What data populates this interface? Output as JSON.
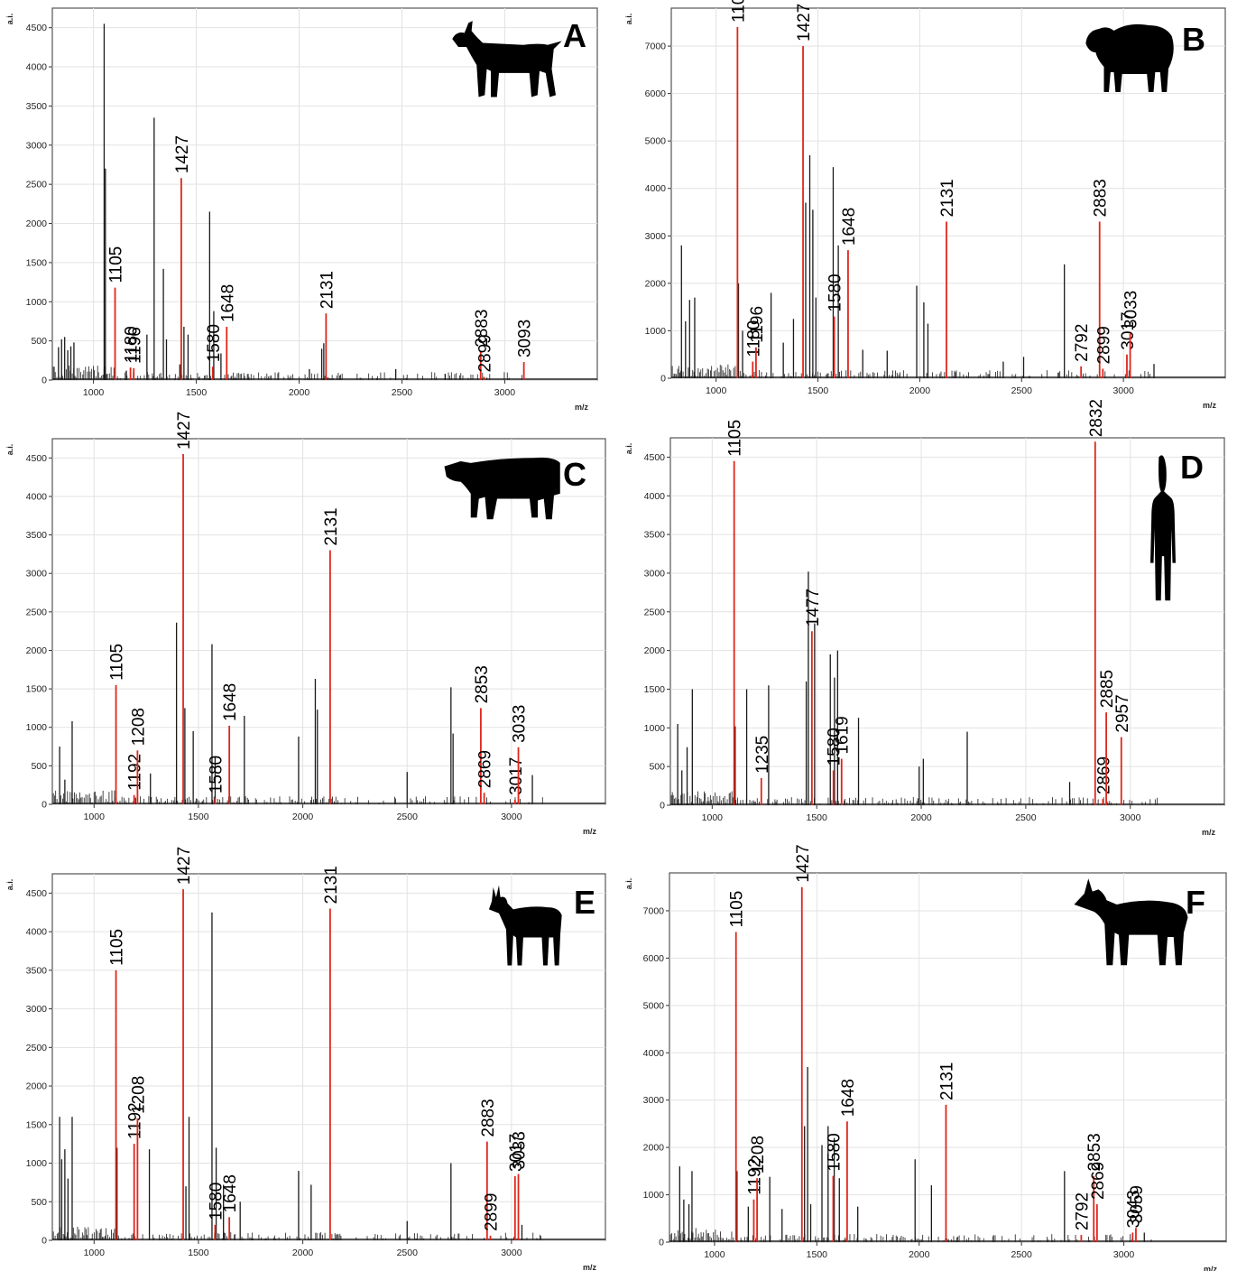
{
  "chart_data": [
    {
      "panel": "A",
      "type": "bar",
      "animal_icon": "goat-silhouette-icon",
      "xlabel": "m/z",
      "ylabel": "a.i.",
      "xlim": [
        800,
        3450
      ],
      "ylim": [
        0,
        4750
      ],
      "xticks": [
        1000,
        1500,
        2000,
        2500,
        3000
      ],
      "yticks": [
        0,
        500,
        1000,
        1500,
        2000,
        2500,
        3000,
        3500,
        4000,
        4500
      ],
      "red_peaks": [
        {
          "mz": 1105,
          "value": 1180,
          "label": "1105"
        },
        {
          "mz": 1180,
          "value": 160,
          "label": "1180"
        },
        {
          "mz": 1196,
          "value": 150,
          "label": "1196"
        },
        {
          "mz": 1427,
          "value": 2580,
          "label": "1427"
        },
        {
          "mz": 1580,
          "value": 170,
          "label": "1580"
        },
        {
          "mz": 1648,
          "value": 680,
          "label": "1648"
        },
        {
          "mz": 2131,
          "value": 850,
          "label": "2131"
        },
        {
          "mz": 2883,
          "value": 360,
          "label": "2883"
        },
        {
          "mz": 2899,
          "value": 40,
          "label": "2899"
        },
        {
          "mz": 3093,
          "value": 230,
          "label": "3093"
        }
      ],
      "black_peaks": [
        [
          830,
          420
        ],
        [
          845,
          520
        ],
        [
          860,
          550
        ],
        [
          875,
          380
        ],
        [
          890,
          430
        ],
        [
          905,
          480
        ],
        [
          1052,
          4550
        ],
        [
          1058,
          2700
        ],
        [
          1160,
          120
        ],
        [
          1260,
          580
        ],
        [
          1295,
          3350
        ],
        [
          1340,
          1420
        ],
        [
          1355,
          520
        ],
        [
          1420,
          200
        ],
        [
          1440,
          680
        ],
        [
          1460,
          580
        ],
        [
          1565,
          2150
        ],
        [
          1585,
          880
        ],
        [
          1620,
          340
        ],
        [
          2050,
          140
        ],
        [
          2110,
          400
        ],
        [
          2120,
          470
        ],
        [
          2470,
          140
        ],
        [
          2710,
          80
        ]
      ]
    },
    {
      "panel": "B",
      "type": "bar",
      "animal_icon": "sheep-silhouette-icon",
      "xlabel": "m/z",
      "ylabel": "a.i.",
      "xlim": [
        780,
        3500
      ],
      "ylim": [
        0,
        7800
      ],
      "xticks": [
        1000,
        1500,
        2000,
        2500,
        3000
      ],
      "yticks": [
        0,
        1000,
        2000,
        3000,
        4000,
        5000,
        6000,
        7000
      ],
      "red_peaks": [
        {
          "mz": 1105,
          "value": 7400,
          "label": "1105"
        },
        {
          "mz": 1180,
          "value": 350,
          "label": "1180"
        },
        {
          "mz": 1196,
          "value": 650,
          "label": "1196"
        },
        {
          "mz": 1427,
          "value": 7000,
          "label": "1427"
        },
        {
          "mz": 1580,
          "value": 1300,
          "label": "1580"
        },
        {
          "mz": 1648,
          "value": 2700,
          "label": "1648"
        },
        {
          "mz": 2131,
          "value": 3300,
          "label": "2131"
        },
        {
          "mz": 2792,
          "value": 250,
          "label": "2792"
        },
        {
          "mz": 2883,
          "value": 3300,
          "label": "2883"
        },
        {
          "mz": 2899,
          "value": 200,
          "label": "2899"
        },
        {
          "mz": 3017,
          "value": 500,
          "label": "3017"
        },
        {
          "mz": 3033,
          "value": 950,
          "label": "3033"
        }
      ],
      "black_peaks": [
        [
          830,
          2800
        ],
        [
          850,
          1200
        ],
        [
          870,
          1650
        ],
        [
          895,
          1700
        ],
        [
          1110,
          2000
        ],
        [
          1130,
          1000
        ],
        [
          1270,
          1800
        ],
        [
          1330,
          750
        ],
        [
          1380,
          1250
        ],
        [
          1440,
          3700
        ],
        [
          1460,
          4700
        ],
        [
          1475,
          3550
        ],
        [
          1490,
          1700
        ],
        [
          1575,
          4450
        ],
        [
          1600,
          2800
        ],
        [
          1720,
          600
        ],
        [
          1840,
          580
        ],
        [
          1985,
          1950
        ],
        [
          2020,
          1600
        ],
        [
          2040,
          1150
        ],
        [
          2410,
          350
        ],
        [
          2510,
          450
        ],
        [
          2710,
          2400
        ],
        [
          3150,
          300
        ]
      ]
    },
    {
      "panel": "C",
      "type": "bar",
      "animal_icon": "cow-silhouette-icon",
      "xlabel": "m/z",
      "ylabel": "a.i.",
      "xlim": [
        800,
        3450
      ],
      "ylim": [
        0,
        4750
      ],
      "xticks": [
        1000,
        1500,
        2000,
        2500,
        3000
      ],
      "yticks": [
        0,
        500,
        1000,
        1500,
        2000,
        2500,
        3000,
        3500,
        4000,
        4500
      ],
      "red_peaks": [
        {
          "mz": 1105,
          "value": 1550,
          "label": "1105"
        },
        {
          "mz": 1192,
          "value": 120,
          "label": "1192"
        },
        {
          "mz": 1208,
          "value": 700,
          "label": "1208"
        },
        {
          "mz": 1427,
          "value": 4550,
          "label": "1427"
        },
        {
          "mz": 1580,
          "value": 80,
          "label": "1580"
        },
        {
          "mz": 1648,
          "value": 1020,
          "label": "1648"
        },
        {
          "mz": 2131,
          "value": 3300,
          "label": "2131"
        },
        {
          "mz": 2853,
          "value": 1250,
          "label": "2853"
        },
        {
          "mz": 2869,
          "value": 150,
          "label": "2869"
        },
        {
          "mz": 3017,
          "value": 60,
          "label": "3017"
        },
        {
          "mz": 3033,
          "value": 740,
          "label": "3033"
        }
      ],
      "black_peaks": [
        [
          835,
          750
        ],
        [
          860,
          320
        ],
        [
          895,
          1080
        ],
        [
          1270,
          400
        ],
        [
          1395,
          2360
        ],
        [
          1435,
          1250
        ],
        [
          1475,
          950
        ],
        [
          1565,
          2080
        ],
        [
          1580,
          620
        ],
        [
          1720,
          1150
        ],
        [
          1980,
          880
        ],
        [
          2060,
          1630
        ],
        [
          2070,
          1230
        ],
        [
          2500,
          420
        ],
        [
          2710,
          1520
        ],
        [
          2720,
          920
        ],
        [
          3100,
          380
        ]
      ]
    },
    {
      "panel": "D",
      "type": "bar",
      "animal_icon": "human-silhouette-icon",
      "xlabel": "m/z",
      "ylabel": "a.i.",
      "xlim": [
        800,
        3450
      ],
      "ylim": [
        0,
        4750
      ],
      "xticks": [
        1000,
        1500,
        2000,
        2500,
        3000
      ],
      "yticks": [
        0,
        500,
        1000,
        1500,
        2000,
        2500,
        3000,
        3500,
        4000,
        4500
      ],
      "red_peaks": [
        {
          "mz": 1105,
          "value": 4450,
          "label": "1105"
        },
        {
          "mz": 1235,
          "value": 350,
          "label": "1235"
        },
        {
          "mz": 1477,
          "value": 2250,
          "label": "1477"
        },
        {
          "mz": 1580,
          "value": 450,
          "label": "1580"
        },
        {
          "mz": 1619,
          "value": 600,
          "label": "1619"
        },
        {
          "mz": 2832,
          "value": 4700,
          "label": "2832"
        },
        {
          "mz": 2869,
          "value": 80,
          "label": "2869"
        },
        {
          "mz": 2885,
          "value": 1200,
          "label": "2885"
        },
        {
          "mz": 2957,
          "value": 880,
          "label": "2957"
        }
      ],
      "black_peaks": [
        [
          835,
          1050
        ],
        [
          855,
          450
        ],
        [
          880,
          750
        ],
        [
          905,
          1500
        ],
        [
          1110,
          1020
        ],
        [
          1165,
          1500
        ],
        [
          1270,
          1550
        ],
        [
          1450,
          1600
        ],
        [
          1460,
          3020
        ],
        [
          1490,
          2350
        ],
        [
          1565,
          1950
        ],
        [
          1585,
          1650
        ],
        [
          1600,
          2000
        ],
        [
          1700,
          1130
        ],
        [
          1990,
          500
        ],
        [
          2010,
          600
        ],
        [
          2220,
          950
        ],
        [
          2710,
          300
        ]
      ]
    },
    {
      "panel": "E",
      "type": "bar",
      "animal_icon": "roe-deer-silhouette-icon",
      "xlabel": "m/z",
      "ylabel": "a.i.",
      "xlim": [
        800,
        3450
      ],
      "ylim": [
        0,
        4750
      ],
      "xticks": [
        1000,
        1500,
        2000,
        2500,
        3000
      ],
      "yticks": [
        0,
        500,
        1000,
        1500,
        2000,
        2500,
        3000,
        3500,
        4000,
        4500
      ],
      "red_peaks": [
        {
          "mz": 1105,
          "value": 3500,
          "label": "1105"
        },
        {
          "mz": 1192,
          "value": 1250,
          "label": "1192"
        },
        {
          "mz": 1208,
          "value": 1580,
          "label": "1208"
        },
        {
          "mz": 1427,
          "value": 4550,
          "label": "1427"
        },
        {
          "mz": 1580,
          "value": 200,
          "label": "1580"
        },
        {
          "mz": 1648,
          "value": 300,
          "label": "1648"
        },
        {
          "mz": 2131,
          "value": 4300,
          "label": "2131"
        },
        {
          "mz": 2883,
          "value": 1280,
          "label": "2883"
        },
        {
          "mz": 2899,
          "value": 60,
          "label": "2899"
        },
        {
          "mz": 3017,
          "value": 830,
          "label": "3017"
        },
        {
          "mz": 3033,
          "value": 860,
          "label": "3033"
        }
      ],
      "black_peaks": [
        [
          835,
          1600
        ],
        [
          845,
          1050
        ],
        [
          860,
          1180
        ],
        [
          875,
          800
        ],
        [
          895,
          1600
        ],
        [
          1110,
          1200
        ],
        [
          1265,
          1180
        ],
        [
          1440,
          700
        ],
        [
          1455,
          1600
        ],
        [
          1565,
          4250
        ],
        [
          1585,
          1200
        ],
        [
          1620,
          720
        ],
        [
          1700,
          500
        ],
        [
          1980,
          900
        ],
        [
          2040,
          720
        ],
        [
          2500,
          250
        ],
        [
          2710,
          1000
        ],
        [
          3050,
          200
        ]
      ]
    },
    {
      "panel": "F",
      "type": "bar",
      "animal_icon": "red-deer-silhouette-icon",
      "xlabel": "m/z",
      "ylabel": "a.i.",
      "xlim": [
        780,
        3500
      ],
      "ylim": [
        0,
        7800
      ],
      "xticks": [
        1000,
        1500,
        2000,
        2500,
        3000
      ],
      "yticks": [
        0,
        1000,
        2000,
        3000,
        4000,
        5000,
        6000,
        7000
      ],
      "red_peaks": [
        {
          "mz": 1105,
          "value": 6550,
          "label": "1105"
        },
        {
          "mz": 1192,
          "value": 900,
          "label": "1192"
        },
        {
          "mz": 1208,
          "value": 1350,
          "label": "1208"
        },
        {
          "mz": 1427,
          "value": 7500,
          "label": "1427"
        },
        {
          "mz": 1580,
          "value": 1400,
          "label": "1580"
        },
        {
          "mz": 1648,
          "value": 2550,
          "label": "1648"
        },
        {
          "mz": 2131,
          "value": 2900,
          "label": "2131"
        },
        {
          "mz": 2792,
          "value": 150,
          "label": "2792"
        },
        {
          "mz": 2853,
          "value": 1400,
          "label": "2853"
        },
        {
          "mz": 2869,
          "value": 800,
          "label": "2869"
        },
        {
          "mz": 3043,
          "value": 200,
          "label": "3043"
        },
        {
          "mz": 3059,
          "value": 300,
          "label": "3059"
        }
      ],
      "black_peaks": [
        [
          830,
          1600
        ],
        [
          850,
          900
        ],
        [
          875,
          800
        ],
        [
          890,
          1500
        ],
        [
          1110,
          1500
        ],
        [
          1165,
          750
        ],
        [
          1270,
          1380
        ],
        [
          1330,
          700
        ],
        [
          1440,
          2450
        ],
        [
          1455,
          3700
        ],
        [
          1470,
          800
        ],
        [
          1525,
          2050
        ],
        [
          1555,
          2450
        ],
        [
          1585,
          2200
        ],
        [
          1610,
          1350
        ],
        [
          1700,
          750
        ],
        [
          1980,
          1750
        ],
        [
          2060,
          1200
        ],
        [
          2710,
          1500
        ],
        [
          3100,
          200
        ]
      ]
    }
  ]
}
